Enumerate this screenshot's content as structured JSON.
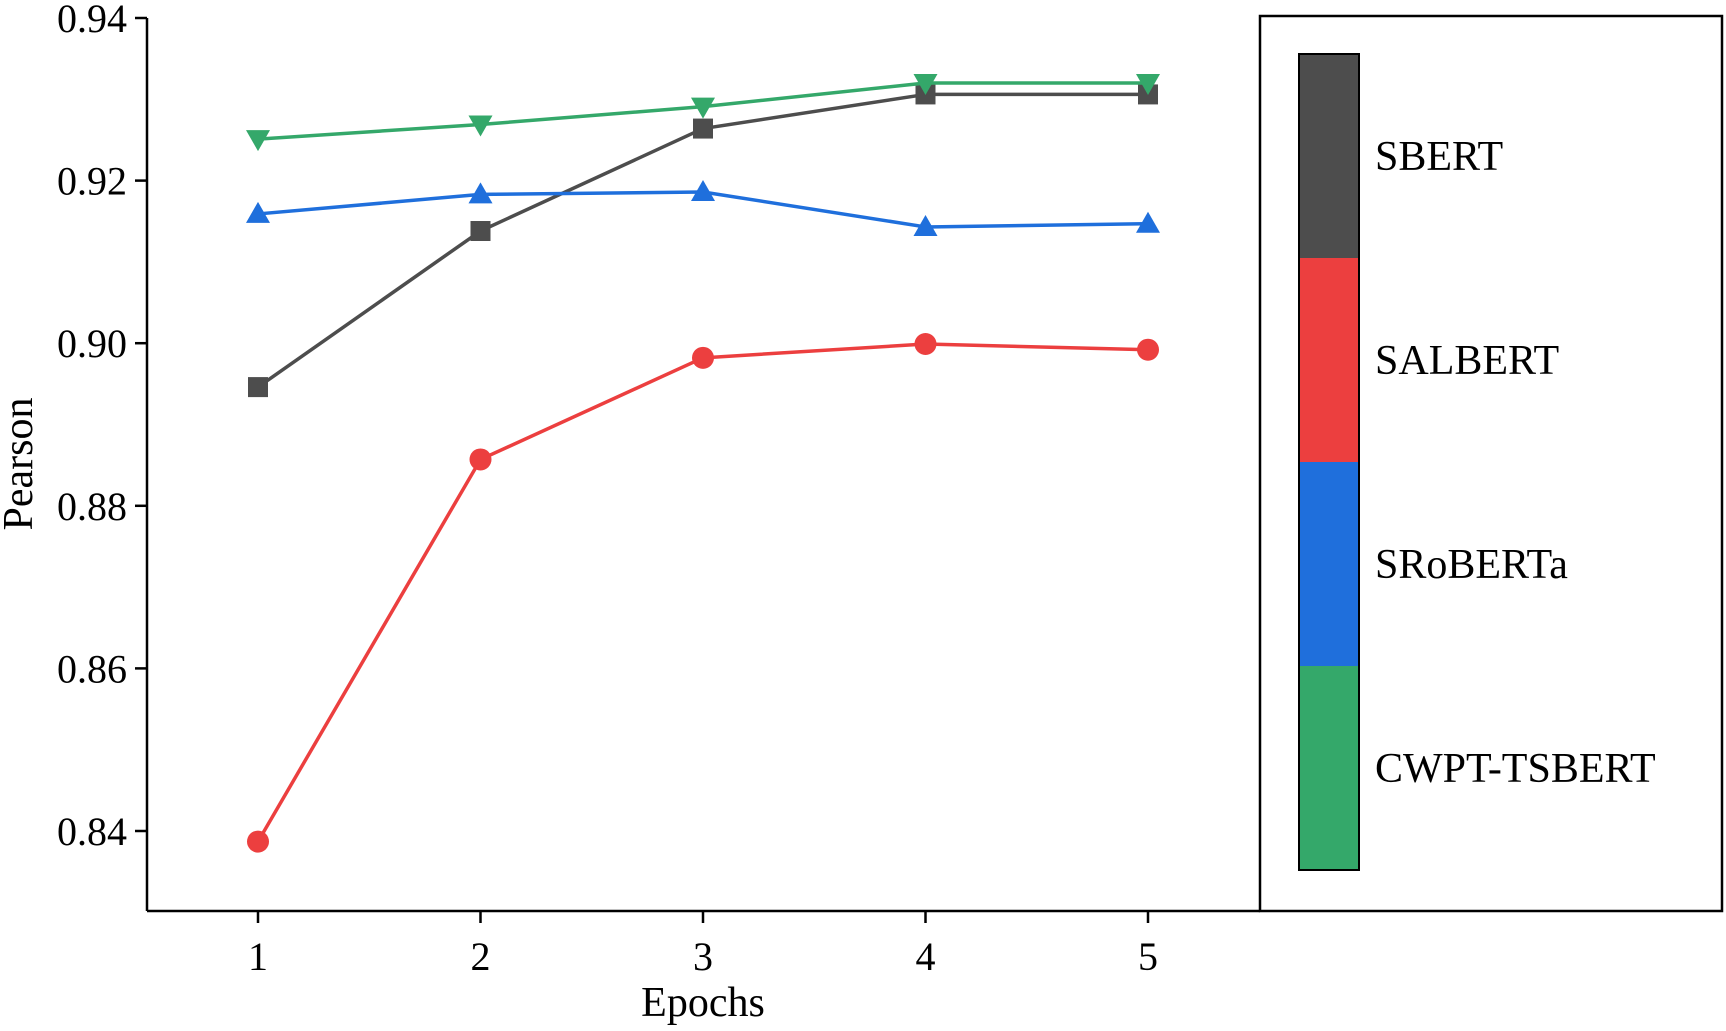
{
  "chart_data": {
    "type": "line",
    "title": "",
    "xlabel": "Epochs",
    "ylabel": "Pearson",
    "x": [
      1,
      2,
      3,
      4,
      5
    ],
    "x_ticks": [
      "1",
      "2",
      "3",
      "4",
      "5"
    ],
    "xlim": [
      0.5,
      5.5
    ],
    "ylim": [
      0.83,
      0.94
    ],
    "y_ticks": [
      "0.84",
      "0.86",
      "0.88",
      "0.90",
      "0.92",
      "0.94"
    ],
    "grid": false,
    "legend_position": "right",
    "series": [
      {
        "name": "SBERT",
        "color": "#4d4d4d",
        "marker": "square",
        "values": [
          0.8946,
          0.9138,
          0.9264,
          0.9306,
          0.9306
        ]
      },
      {
        "name": "SALBERT",
        "color": "#ec3f3f",
        "marker": "circle",
        "values": [
          0.8387,
          0.8857,
          0.8982,
          0.8999,
          0.8992
        ]
      },
      {
        "name": "SRoBERTa",
        "color": "#1f6fdc",
        "marker": "triangle-up",
        "values": [
          0.9159,
          0.9183,
          0.9186,
          0.9143,
          0.9147
        ]
      },
      {
        "name": "CWPT-TSBERT",
        "color": "#34a86a",
        "marker": "triangle-down",
        "values": [
          0.9251,
          0.9269,
          0.9291,
          0.932,
          0.932
        ]
      }
    ]
  }
}
